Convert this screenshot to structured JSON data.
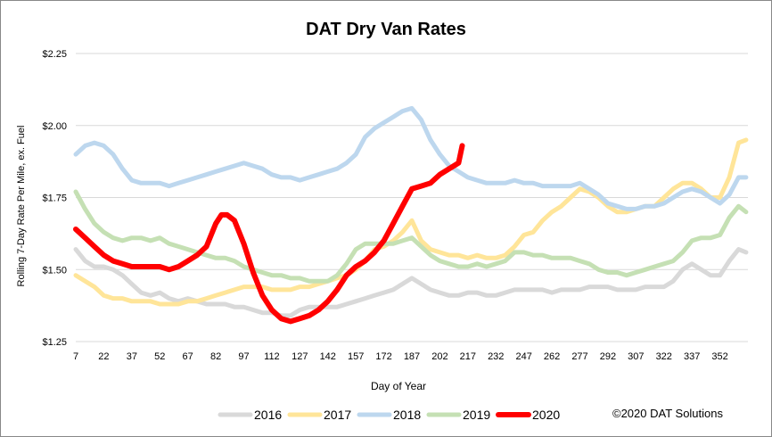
{
  "chart_data": {
    "type": "line",
    "title": "DAT Dry Van Rates",
    "xlabel": "Day of Year",
    "ylabel": "Rolling 7-Day Rate Per Mile, ex. Fuel",
    "xlim": [
      7,
      367
    ],
    "ylim": [
      1.25,
      2.25
    ],
    "x_ticks": [
      "7",
      "22",
      "37",
      "52",
      "67",
      "82",
      "97",
      "112",
      "127",
      "142",
      "157",
      "172",
      "187",
      "202",
      "217",
      "232",
      "247",
      "262",
      "277",
      "292",
      "307",
      "322",
      "337",
      "352"
    ],
    "y_ticks": [
      "$1.25",
      "$1.50",
      "$1.75",
      "$2.00",
      "$2.25"
    ],
    "grid": "horizontal",
    "legend_position": "bottom",
    "series": [
      {
        "name": "2016",
        "color": "#d9d9d9",
        "x": [
          7,
          12,
          17,
          22,
          27,
          32,
          37,
          42,
          47,
          52,
          57,
          62,
          67,
          72,
          77,
          82,
          87,
          92,
          97,
          102,
          107,
          112,
          117,
          122,
          127,
          132,
          137,
          142,
          147,
          152,
          157,
          162,
          167,
          172,
          177,
          182,
          187,
          192,
          197,
          202,
          207,
          212,
          217,
          222,
          227,
          232,
          237,
          242,
          247,
          252,
          257,
          262,
          267,
          272,
          277,
          282,
          287,
          292,
          297,
          302,
          307,
          312,
          317,
          322,
          327,
          332,
          337,
          342,
          347,
          352,
          357,
          362,
          366
        ],
        "values": [
          1.57,
          1.53,
          1.51,
          1.51,
          1.5,
          1.48,
          1.45,
          1.42,
          1.41,
          1.42,
          1.4,
          1.39,
          1.4,
          1.39,
          1.38,
          1.38,
          1.38,
          1.37,
          1.37,
          1.36,
          1.35,
          1.35,
          1.34,
          1.34,
          1.36,
          1.37,
          1.37,
          1.37,
          1.37,
          1.38,
          1.39,
          1.4,
          1.41,
          1.42,
          1.43,
          1.45,
          1.47,
          1.45,
          1.43,
          1.42,
          1.41,
          1.41,
          1.42,
          1.42,
          1.41,
          1.41,
          1.42,
          1.43,
          1.43,
          1.43,
          1.43,
          1.42,
          1.43,
          1.43,
          1.43,
          1.44,
          1.44,
          1.44,
          1.43,
          1.43,
          1.43,
          1.44,
          1.44,
          1.44,
          1.46,
          1.5,
          1.52,
          1.5,
          1.48,
          1.48,
          1.53,
          1.57,
          1.56
        ]
      },
      {
        "name": "2017",
        "color": "#ffe599",
        "x": [
          7,
          12,
          17,
          22,
          27,
          32,
          37,
          42,
          47,
          52,
          57,
          62,
          67,
          72,
          77,
          82,
          87,
          92,
          97,
          102,
          107,
          112,
          117,
          122,
          127,
          132,
          137,
          142,
          147,
          152,
          157,
          162,
          167,
          172,
          177,
          182,
          187,
          192,
          197,
          202,
          207,
          212,
          217,
          222,
          227,
          232,
          237,
          242,
          247,
          252,
          257,
          262,
          267,
          272,
          277,
          282,
          287,
          292,
          297,
          302,
          307,
          312,
          317,
          322,
          327,
          332,
          337,
          342,
          347,
          352,
          357,
          362,
          366
        ],
        "values": [
          1.48,
          1.46,
          1.44,
          1.41,
          1.4,
          1.4,
          1.39,
          1.39,
          1.39,
          1.38,
          1.38,
          1.38,
          1.39,
          1.39,
          1.4,
          1.41,
          1.42,
          1.43,
          1.44,
          1.44,
          1.44,
          1.43,
          1.43,
          1.43,
          1.44,
          1.44,
          1.45,
          1.46,
          1.47,
          1.48,
          1.5,
          1.53,
          1.57,
          1.58,
          1.6,
          1.63,
          1.67,
          1.6,
          1.57,
          1.56,
          1.55,
          1.55,
          1.54,
          1.55,
          1.54,
          1.54,
          1.55,
          1.58,
          1.62,
          1.63,
          1.67,
          1.7,
          1.72,
          1.75,
          1.78,
          1.77,
          1.75,
          1.72,
          1.7,
          1.7,
          1.71,
          1.72,
          1.72,
          1.75,
          1.78,
          1.8,
          1.8,
          1.78,
          1.75,
          1.75,
          1.82,
          1.94,
          1.95
        ]
      },
      {
        "name": "2018",
        "color": "#bdd7ee",
        "x": [
          7,
          12,
          17,
          22,
          27,
          32,
          37,
          42,
          47,
          52,
          57,
          62,
          67,
          72,
          77,
          82,
          87,
          92,
          97,
          102,
          107,
          112,
          117,
          122,
          127,
          132,
          137,
          142,
          147,
          152,
          157,
          162,
          167,
          172,
          177,
          182,
          187,
          192,
          197,
          202,
          207,
          212,
          217,
          222,
          227,
          232,
          237,
          242,
          247,
          252,
          257,
          262,
          267,
          272,
          277,
          282,
          287,
          292,
          297,
          302,
          307,
          312,
          317,
          322,
          327,
          332,
          337,
          342,
          347,
          352,
          357,
          362,
          366
        ],
        "values": [
          1.9,
          1.93,
          1.94,
          1.93,
          1.9,
          1.85,
          1.81,
          1.8,
          1.8,
          1.8,
          1.79,
          1.8,
          1.81,
          1.82,
          1.83,
          1.84,
          1.85,
          1.86,
          1.87,
          1.86,
          1.85,
          1.83,
          1.82,
          1.82,
          1.81,
          1.82,
          1.83,
          1.84,
          1.85,
          1.87,
          1.9,
          1.96,
          1.99,
          2.01,
          2.03,
          2.05,
          2.06,
          2.02,
          1.95,
          1.9,
          1.86,
          1.84,
          1.82,
          1.81,
          1.8,
          1.8,
          1.8,
          1.81,
          1.8,
          1.8,
          1.79,
          1.79,
          1.79,
          1.79,
          1.8,
          1.78,
          1.76,
          1.73,
          1.72,
          1.71,
          1.71,
          1.72,
          1.72,
          1.73,
          1.75,
          1.77,
          1.78,
          1.77,
          1.75,
          1.73,
          1.76,
          1.82,
          1.82
        ]
      },
      {
        "name": "2019",
        "color": "#c5e0b4",
        "x": [
          7,
          12,
          17,
          22,
          27,
          32,
          37,
          42,
          47,
          52,
          57,
          62,
          67,
          72,
          77,
          82,
          87,
          92,
          97,
          102,
          107,
          112,
          117,
          122,
          127,
          132,
          137,
          142,
          147,
          152,
          157,
          162,
          167,
          172,
          177,
          182,
          187,
          192,
          197,
          202,
          207,
          212,
          217,
          222,
          227,
          232,
          237,
          242,
          247,
          252,
          257,
          262,
          267,
          272,
          277,
          282,
          287,
          292,
          297,
          302,
          307,
          312,
          317,
          322,
          327,
          332,
          337,
          342,
          347,
          352,
          357,
          362,
          366
        ],
        "values": [
          1.77,
          1.71,
          1.66,
          1.63,
          1.61,
          1.6,
          1.61,
          1.61,
          1.6,
          1.61,
          1.59,
          1.58,
          1.57,
          1.56,
          1.55,
          1.54,
          1.54,
          1.53,
          1.51,
          1.5,
          1.49,
          1.48,
          1.48,
          1.47,
          1.47,
          1.46,
          1.46,
          1.46,
          1.48,
          1.52,
          1.57,
          1.59,
          1.59,
          1.59,
          1.59,
          1.6,
          1.61,
          1.58,
          1.55,
          1.53,
          1.52,
          1.51,
          1.51,
          1.52,
          1.51,
          1.52,
          1.53,
          1.56,
          1.56,
          1.55,
          1.55,
          1.54,
          1.54,
          1.54,
          1.53,
          1.52,
          1.5,
          1.49,
          1.49,
          1.48,
          1.49,
          1.5,
          1.51,
          1.52,
          1.53,
          1.56,
          1.6,
          1.61,
          1.61,
          1.62,
          1.68,
          1.72,
          1.7
        ]
      },
      {
        "name": "2020",
        "color": "#ff0000",
        "x": [
          7,
          12,
          17,
          22,
          27,
          32,
          37,
          42,
          47,
          52,
          57,
          62,
          67,
          72,
          77,
          82,
          85,
          88,
          92,
          97,
          102,
          107,
          112,
          117,
          122,
          127,
          132,
          137,
          142,
          147,
          152,
          157,
          162,
          167,
          172,
          177,
          182,
          187,
          192,
          197,
          202,
          207,
          212,
          214
        ],
        "values": [
          1.64,
          1.61,
          1.58,
          1.55,
          1.53,
          1.52,
          1.51,
          1.51,
          1.51,
          1.51,
          1.5,
          1.51,
          1.53,
          1.55,
          1.58,
          1.66,
          1.69,
          1.69,
          1.67,
          1.59,
          1.49,
          1.41,
          1.36,
          1.33,
          1.32,
          1.33,
          1.34,
          1.36,
          1.39,
          1.43,
          1.48,
          1.51,
          1.53,
          1.56,
          1.6,
          1.66,
          1.72,
          1.78,
          1.79,
          1.8,
          1.83,
          1.85,
          1.87,
          1.93
        ]
      }
    ]
  },
  "copyright": "©2020 DAT Solutions"
}
